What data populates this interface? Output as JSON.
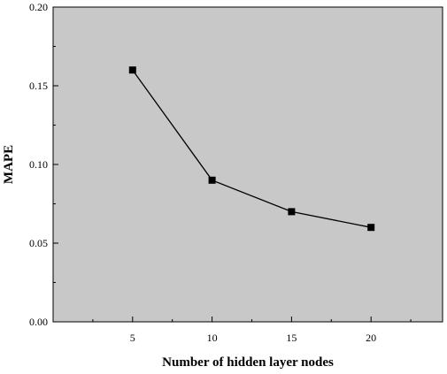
{
  "chart_data": {
    "type": "line",
    "xlabel": "Number of hidden layer nodes",
    "ylabel": "MAPE",
    "x": [
      5,
      10,
      15,
      20
    ],
    "series": [
      {
        "values": [
          0.16,
          0.09,
          0.07,
          0.06
        ]
      }
    ],
    "xlim": [
      0,
      24.5
    ],
    "ylim": [
      0,
      0.2
    ],
    "xticks": [
      5,
      10,
      15,
      20
    ],
    "xtick_labels": [
      "5",
      "10",
      "15",
      "20"
    ],
    "yticks": [
      0,
      0.05,
      0.1,
      0.15,
      0.2
    ],
    "ytick_labels": [
      "0.00",
      "0.05",
      "0.10",
      "0.15",
      "0.20"
    ],
    "grid": false,
    "legend": "none",
    "marker": "square",
    "colors": {
      "plot_background": "#c8c8c8",
      "line": "#000000",
      "marker": "#000000"
    }
  }
}
